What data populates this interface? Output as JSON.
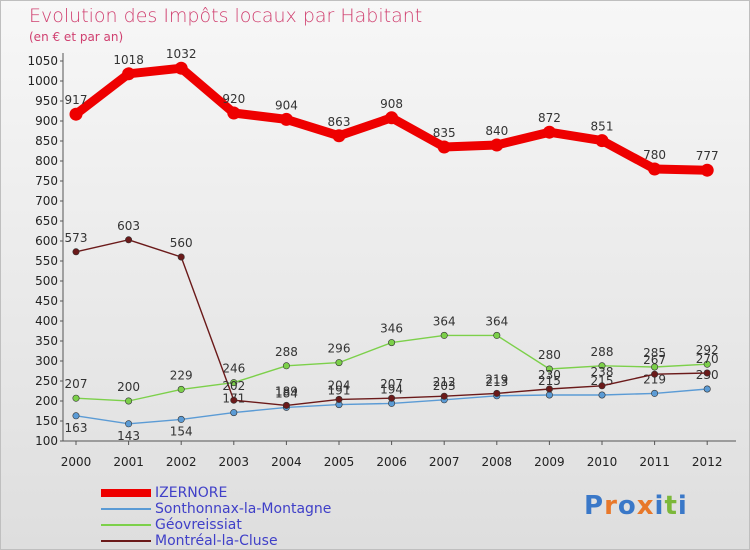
{
  "chart_data": {
    "type": "line",
    "title": "Evolution des Impôts locaux par Habitant",
    "subtitle": "(en € et par an)",
    "categories": [
      "2000",
      "2001",
      "2002",
      "2003",
      "2004",
      "2005",
      "2006",
      "2007",
      "2008",
      "2009",
      "2010",
      "2011",
      "2012"
    ],
    "ylim": [
      100,
      1050
    ],
    "yticks": [
      "100",
      "150",
      "200",
      "250",
      "300",
      "350",
      "400",
      "450",
      "500",
      "550",
      "600",
      "650",
      "700",
      "750",
      "800",
      "850",
      "900",
      "950",
      "1000",
      "1050"
    ],
    "grid": false,
    "legend_position": "bottom-left",
    "series": [
      {
        "name": "IZERNORE",
        "color": "#ee0000",
        "values": [
          917,
          1018,
          1032,
          920,
          904,
          863,
          908,
          835,
          840,
          872,
          851,
          780,
          777
        ],
        "labels": [
          "917",
          "1018",
          "1032",
          "920",
          "904",
          "863",
          "908",
          "835",
          "840",
          "872",
          "851",
          "780",
          "777"
        ]
      },
      {
        "name": "Sonthonnax-la-Montagne",
        "color": "#5b9bd5",
        "values": [
          163,
          143,
          154,
          171,
          184,
          191,
          194,
          203,
          213,
          215,
          215,
          219,
          230
        ],
        "labels": [
          "163",
          "143",
          "154",
          "171",
          "184",
          "191",
          "194",
          "203",
          "213",
          "215",
          "215",
          "219",
          "230"
        ]
      },
      {
        "name": "Géovreissiat",
        "color": "#7cd04a",
        "values": [
          207,
          200,
          229,
          246,
          288,
          296,
          346,
          364,
          364,
          280,
          288,
          285,
          292
        ],
        "labels": [
          "207",
          "200",
          "229",
          "246",
          "288",
          "296",
          "346",
          "364",
          "364",
          "280",
          "288",
          "285",
          "292"
        ]
      },
      {
        "name": "Montréal-la-Cluse",
        "color": "#6b1a1a",
        "values": [
          573,
          603,
          560,
          202,
          189,
          204,
          207,
          212,
          219,
          230,
          238,
          267,
          270
        ],
        "labels": [
          "573",
          "603",
          "560",
          "202",
          "189",
          "204",
          "207",
          "212",
          "219",
          "230",
          "238",
          "267",
          "270"
        ]
      }
    ]
  },
  "legend": {
    "items": [
      "IZERNORE",
      "Sonthonnax-la-Montagne",
      "Géovreissiat",
      "Montréal-la-Cluse"
    ]
  },
  "logo": {
    "text": "Proxiti",
    "letters": [
      "P",
      "r",
      "o",
      "x",
      "i",
      "t",
      "i"
    ],
    "colors": [
      "#3a78c8",
      "#e8782a",
      "#3a78c8",
      "#e8782a",
      "#3a78c8",
      "#7cb83a",
      "#3a78c8"
    ]
  }
}
